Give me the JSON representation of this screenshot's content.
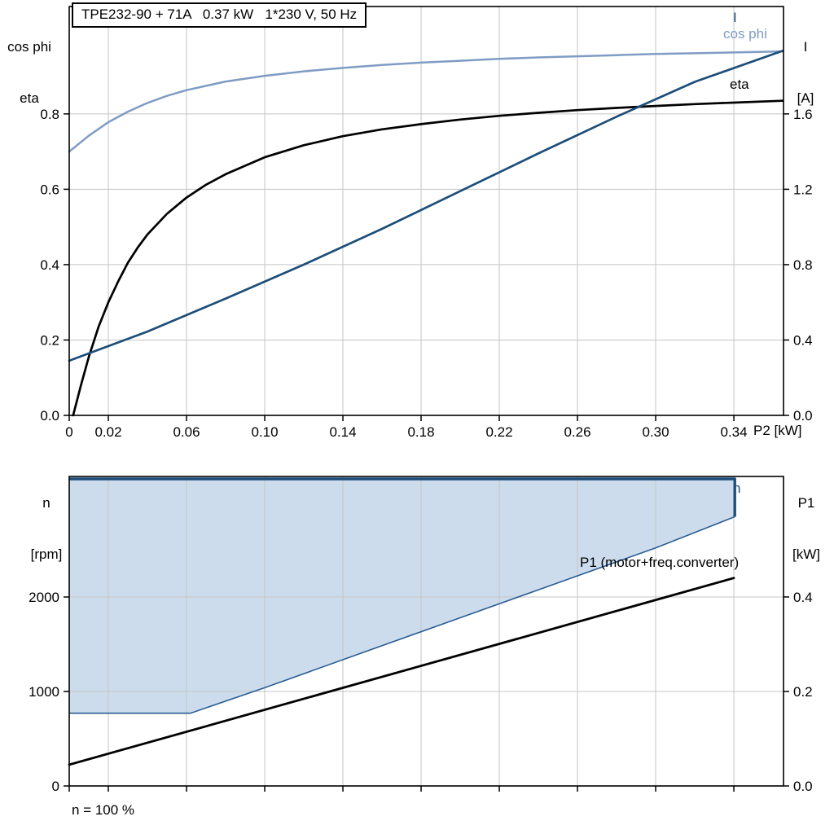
{
  "top_chart": {
    "title": "TPE232-90 + 71A   0.37 kW   1*230 V, 50 Hz",
    "y_left_label": [
      "cos phi",
      "eta"
    ],
    "y_right_label": [
      "I",
      "[A]"
    ],
    "x_axis_label": "P2 [kW]",
    "curve_labels": {
      "current": "I",
      "cos_phi": "cos phi",
      "eta": "eta"
    }
  },
  "bottom_chart": {
    "y_left_label": [
      "n",
      "[rpm]"
    ],
    "y_right_label": [
      "P1",
      "[kW]"
    ],
    "note": "n = 100 %",
    "curve_labels": {
      "n": "n",
      "p1": "P1 (motor+freq.converter)"
    }
  },
  "colors": {
    "grid": "#c4c4c4",
    "frame": "#000000",
    "cos_phi": "#7f9cc4",
    "eta": "#000000",
    "current": "#1d4e79",
    "region_fill": "#cddcec",
    "region_edge": "#1d4e79",
    "region_lower": "#2a5d94",
    "p1": "#000000"
  },
  "chart_data": [
    {
      "id": "top",
      "type": "line",
      "title": "TPE232-90 + 71A   0.37 kW   1*230 V, 50 Hz",
      "xlabel": "P2 [kW]",
      "ylabel_left": "cos phi / eta",
      "ylabel_right": "I [A]",
      "xlim": [
        0,
        0.3654
      ],
      "ylim_left": [
        0,
        1.085
      ],
      "ylim_right": [
        0,
        2.17
      ],
      "grid": true,
      "x_ticks": [
        0,
        0.02,
        0.06,
        0.1,
        0.14,
        0.18,
        0.22,
        0.26,
        0.3,
        0.34
      ],
      "x_tick_labels": [
        "0",
        "0.02",
        "0.06",
        "0.10",
        "0.14",
        "0.18",
        "0.22",
        "0.26",
        "0.30",
        "0.34"
      ],
      "y_ticks_left": [
        0.0,
        0.2,
        0.4,
        0.6,
        0.8
      ],
      "y_tick_labels_left": [
        "0.0",
        "0.2",
        "0.4",
        "0.6",
        "0.8"
      ],
      "y_ticks_right": [
        0.0,
        0.4,
        0.8,
        1.2,
        1.6
      ],
      "y_tick_labels_right": [
        "0.0",
        "0.4",
        "0.8",
        "1.2",
        "1.6"
      ],
      "series": [
        {
          "name": "cos phi",
          "axis": "left",
          "color": "#7f9cc4",
          "width": 2.5,
          "x": [
            0,
            0.01,
            0.02,
            0.03,
            0.04,
            0.05,
            0.06,
            0.08,
            0.1,
            0.12,
            0.14,
            0.16,
            0.18,
            0.2,
            0.22,
            0.24,
            0.26,
            0.28,
            0.3,
            0.32,
            0.34,
            0.365
          ],
          "y": [
            0.7,
            0.742,
            0.778,
            0.806,
            0.829,
            0.848,
            0.863,
            0.886,
            0.901,
            0.913,
            0.922,
            0.93,
            0.936,
            0.941,
            0.946,
            0.95,
            0.953,
            0.956,
            0.959,
            0.961,
            0.963,
            0.966
          ]
        },
        {
          "name": "eta",
          "axis": "left",
          "color": "#000000",
          "width": 2.7,
          "x": [
            0.002,
            0.006,
            0.01,
            0.015,
            0.02,
            0.025,
            0.03,
            0.035,
            0.04,
            0.05,
            0.06,
            0.07,
            0.08,
            0.1,
            0.12,
            0.14,
            0.16,
            0.18,
            0.2,
            0.22,
            0.24,
            0.26,
            0.28,
            0.3,
            0.32,
            0.34,
            0.365
          ],
          "y": [
            0.0,
            0.08,
            0.155,
            0.235,
            0.3,
            0.355,
            0.405,
            0.445,
            0.48,
            0.535,
            0.578,
            0.612,
            0.64,
            0.685,
            0.717,
            0.741,
            0.759,
            0.773,
            0.785,
            0.795,
            0.803,
            0.81,
            0.816,
            0.821,
            0.826,
            0.83,
            0.835
          ]
        },
        {
          "name": "I",
          "axis": "right",
          "color": "#1d4e79",
          "width": 2.7,
          "x": [
            0,
            0.04,
            0.08,
            0.12,
            0.16,
            0.2,
            0.24,
            0.28,
            0.32,
            0.365
          ],
          "y": [
            0.29,
            0.445,
            0.62,
            0.8,
            0.99,
            1.19,
            1.39,
            1.585,
            1.77,
            1.935
          ]
        }
      ]
    },
    {
      "id": "bottom",
      "type": "line",
      "ylabel_left": "n [rpm]",
      "ylabel_right": "P1 [kW]",
      "note": "n = 100 %",
      "xlim": [
        0,
        0.3654
      ],
      "ylim_left": [
        0,
        3276
      ],
      "ylim_right": [
        0,
        0.655
      ],
      "grid": true,
      "x_ticks": [
        0,
        0.02,
        0.06,
        0.1,
        0.14,
        0.18,
        0.22,
        0.26,
        0.3,
        0.34
      ],
      "x_tick_labels": [],
      "y_ticks_left": [
        0,
        1000,
        2000
      ],
      "y_tick_labels_left": [
        "0",
        "1000",
        "2000"
      ],
      "y_ticks_right": [
        0.0,
        0.2,
        0.4
      ],
      "y_tick_labels_right": [
        "0.0",
        "0.2",
        "0.4"
      ],
      "region": {
        "name": "speed operating range",
        "fill": "#cddcec",
        "edge_color": "#1d4e79",
        "lower_color": "#2a5d94",
        "upper_n": 3250,
        "upper_x": [
          0,
          0.3405
        ],
        "lower": {
          "x": [
            0,
            0.062,
            0.1,
            0.15,
            0.2,
            0.25,
            0.3,
            0.3405
          ],
          "n": [
            770,
            770,
            1040,
            1410,
            1780,
            2150,
            2520,
            2850
          ]
        }
      },
      "series": [
        {
          "name": "P1 (motor+freq.converter)",
          "axis": "right",
          "color": "#000000",
          "width": 2.8,
          "x": [
            0,
            0.34
          ],
          "y": [
            0.045,
            0.44
          ]
        }
      ]
    }
  ]
}
